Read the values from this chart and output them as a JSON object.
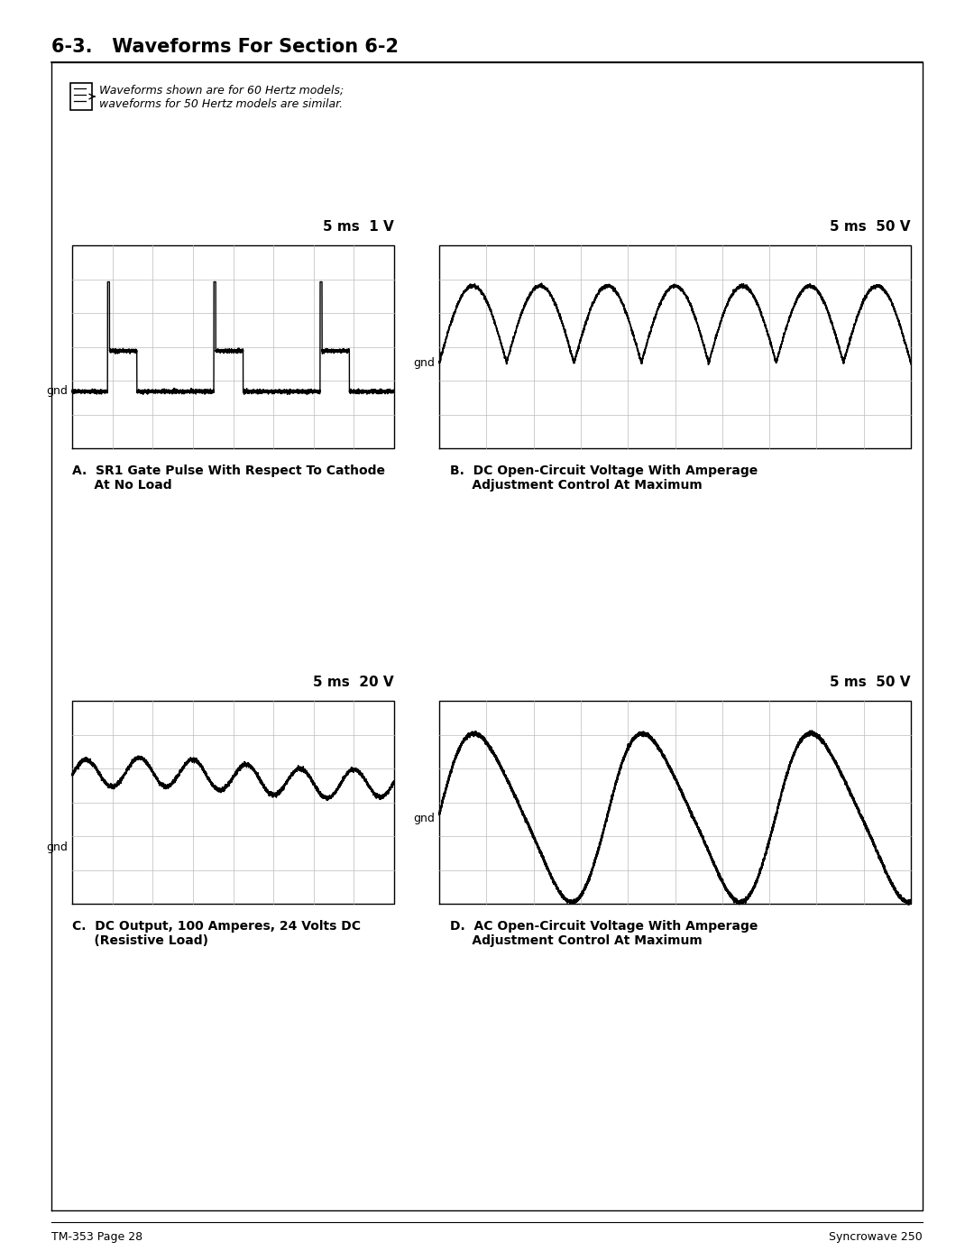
{
  "title": "6-3.   Waveforms For Section 6-2",
  "note_text": "Waveforms shown are for 60 Hertz models;\nwaveforms for 50 Hertz models are similar.",
  "footer_left": "TM-353 Page 28",
  "footer_right": "Syncrowave 250",
  "label_A_1": "A.  SR1 Gate Pulse With Respect To Cathode",
  "label_A_2": "     At No Load",
  "label_B_1": "B.  DC Open-Circuit Voltage With Amperage",
  "label_B_2": "     Adjustment Control At Maximum",
  "label_C_1": "C.  DC Output, 100 Amperes, 24 Volts DC",
  "label_C_2": "     (Resistive Load)",
  "label_D_1": "D.  AC Open-Circuit Voltage With Amperage",
  "label_D_2": "     Adjustment Control At Maximum",
  "scale_A": "5 ms  1 V",
  "scale_B": "5 ms  50 V",
  "scale_C": "5 ms  20 V",
  "scale_D": "5 ms  50 V",
  "bg_color": "#ffffff",
  "line_color": "#000000",
  "grid_color": "#bbbbbb"
}
